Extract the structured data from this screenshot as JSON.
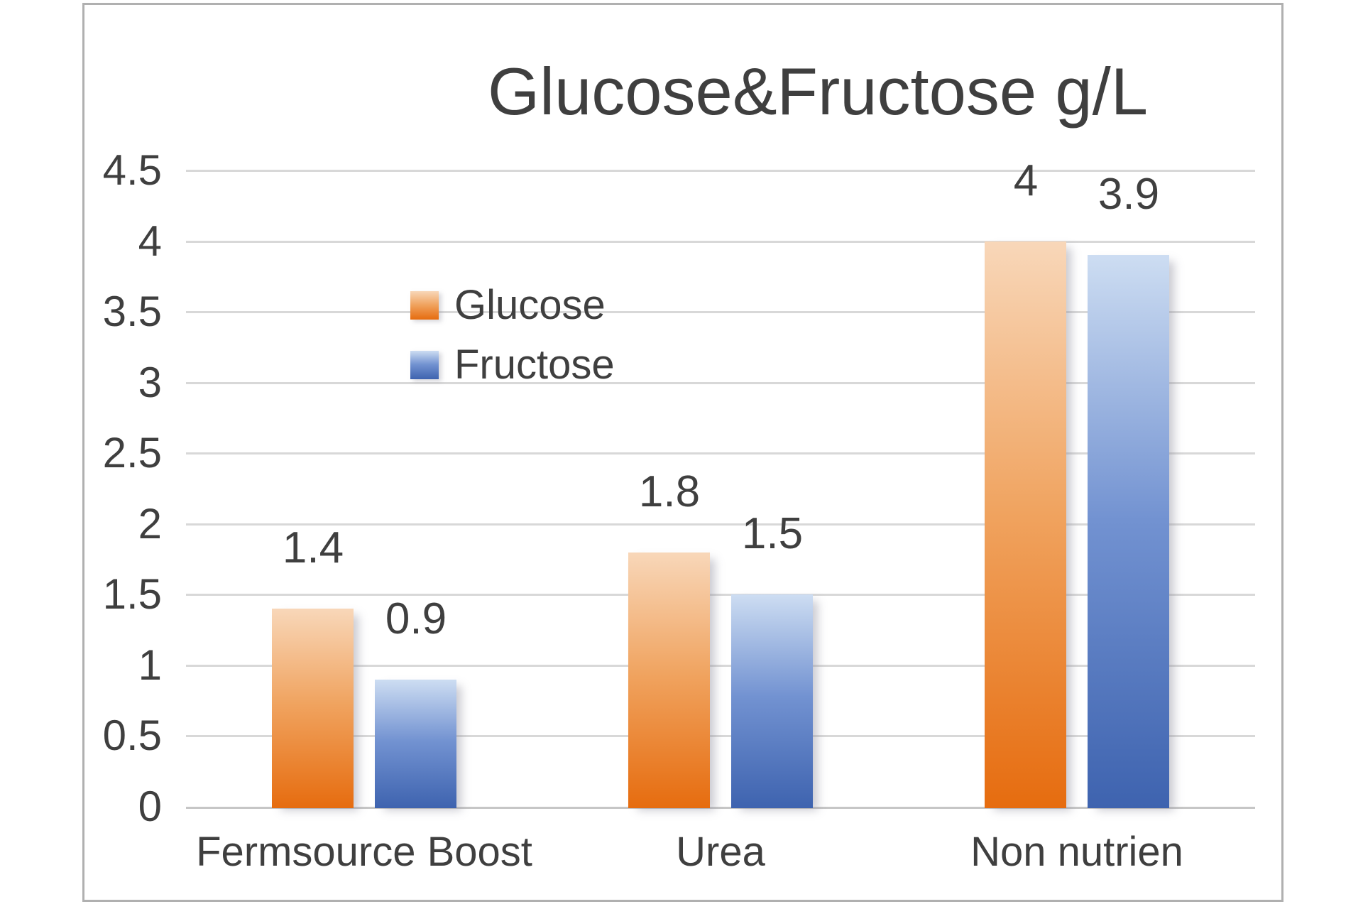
{
  "chart_data": {
    "type": "bar",
    "title": "Glucose&Fructose g/L",
    "categories": [
      "Fermsource Boost",
      "Urea",
      "Non nutrien"
    ],
    "series": [
      {
        "name": "Glucose",
        "values": [
          1.4,
          1.8,
          4
        ],
        "labels": [
          "1.4",
          "1.8",
          "4"
        ],
        "gradient_top": "#F8D7B9",
        "gradient_mid": "#F0A35F",
        "gradient_bottom": "#E66C0F"
      },
      {
        "name": "Fructose",
        "values": [
          0.9,
          1.5,
          3.9
        ],
        "labels": [
          "0.9",
          "1.5",
          "3.9"
        ],
        "gradient_top": "#CDDDF2",
        "gradient_mid": "#7292D1",
        "gradient_bottom": "#3E63AF"
      }
    ],
    "y_axis": {
      "min": 0,
      "max": 4.5,
      "step": 0.5,
      "tick_labels": [
        "0",
        "0.5",
        "1",
        "1.5",
        "2",
        "2.5",
        "3",
        "3.5",
        "4",
        "4.5"
      ]
    },
    "legend": {
      "entries": [
        "Glucose",
        "Fructose"
      ],
      "position": "inside-left-middle"
    },
    "grid": true,
    "ylim": [
      0,
      4.5
    ],
    "colors": {
      "gridline": "#D8D8D8",
      "axis_line": "#C6C6C6",
      "text": "#3F3F3F",
      "frame_border": "#B0B0B0",
      "background": "#FFFFFF"
    }
  }
}
